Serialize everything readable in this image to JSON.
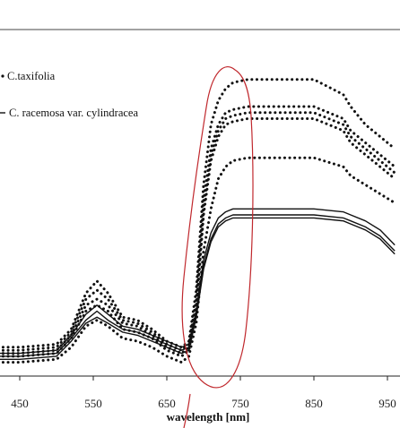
{
  "chart_data": {
    "type": "line",
    "title": "",
    "xlabel": "wavelength [nm]",
    "ylabel": "",
    "xlim": [
      400,
      960
    ],
    "ylim": [
      0,
      100
    ],
    "x_ticks": [
      450,
      550,
      650,
      750,
      850,
      950
    ],
    "x_tick_labels": [
      "450",
      "550",
      "650",
      "750",
      "850",
      "950"
    ],
    "legend": [
      {
        "label": "C.taxifolia",
        "style": "dotted"
      },
      {
        "label": "C. racemosa var. cylindracea",
        "style": "solid"
      }
    ],
    "legend_position": "top-left",
    "series": [
      {
        "style": "dotted",
        "x": [
          400,
          450,
          500,
          520,
          540,
          555,
          570,
          590,
          610,
          630,
          650,
          670,
          680,
          690,
          700,
          710,
          720,
          730,
          740,
          760,
          790,
          850,
          890,
          900,
          920,
          940,
          960
        ],
        "y": [
          6,
          6,
          7,
          12,
          24,
          28,
          24,
          16,
          15,
          12,
          8,
          6,
          8,
          25,
          60,
          80,
          88,
          92,
          94,
          95,
          95,
          95,
          90,
          86,
          80,
          76,
          72
        ]
      },
      {
        "style": "dotted",
        "x": [
          400,
          450,
          500,
          520,
          540,
          555,
          570,
          590,
          610,
          630,
          650,
          670,
          680,
          690,
          700,
          710,
          720,
          730,
          740,
          760,
          790,
          850,
          890,
          900,
          920,
          940,
          960
        ],
        "y": [
          5,
          5,
          6,
          11,
          22,
          25,
          22,
          15,
          14,
          11,
          7,
          5,
          7,
          22,
          55,
          72,
          80,
          84,
          85,
          86,
          86,
          86,
          82,
          78,
          74,
          70,
          66
        ]
      },
      {
        "style": "dotted",
        "x": [
          400,
          450,
          500,
          520,
          540,
          555,
          570,
          590,
          610,
          630,
          650,
          670,
          680,
          690,
          700,
          710,
          720,
          730,
          740,
          760,
          790,
          850,
          890,
          900,
          920,
          940,
          960
        ],
        "y": [
          4,
          4,
          5,
          10,
          20,
          22,
          20,
          14,
          13,
          10,
          6,
          4,
          6,
          20,
          52,
          70,
          78,
          82,
          83,
          84,
          84,
          84,
          80,
          76,
          72,
          68,
          64
        ]
      },
      {
        "style": "dotted",
        "x": [
          400,
          450,
          500,
          520,
          540,
          555,
          570,
          590,
          610,
          630,
          650,
          670,
          680,
          690,
          700,
          710,
          720,
          730,
          740,
          760,
          790,
          850,
          890,
          900,
          920,
          940,
          960
        ],
        "y": [
          3,
          3,
          4,
          9,
          18,
          20,
          18,
          12,
          11,
          9,
          5,
          3,
          5,
          18,
          50,
          68,
          76,
          80,
          81,
          82,
          82,
          82,
          78,
          74,
          70,
          66,
          62
        ]
      },
      {
        "style": "dotted",
        "x": [
          400,
          450,
          500,
          520,
          540,
          555,
          570,
          590,
          610,
          630,
          650,
          670,
          680,
          690,
          700,
          710,
          720,
          730,
          740,
          760,
          790,
          850,
          890,
          900,
          920,
          940,
          960
        ],
        "y": [
          1,
          1,
          2,
          6,
          13,
          15,
          13,
          9,
          8,
          6,
          3,
          1,
          3,
          14,
          38,
          52,
          62,
          66,
          68,
          69,
          69,
          69,
          66,
          63,
          60,
          57,
          54
        ]
      },
      {
        "style": "solid",
        "x": [
          400,
          450,
          500,
          520,
          540,
          555,
          570,
          590,
          610,
          630,
          650,
          670,
          680,
          690,
          700,
          710,
          720,
          730,
          740,
          760,
          790,
          850,
          890,
          900,
          920,
          940,
          960
        ],
        "y": [
          4,
          4,
          5,
          10,
          17,
          20,
          17,
          13,
          12,
          10,
          8,
          6,
          7,
          18,
          35,
          44,
          49,
          51,
          52,
          52,
          52,
          52,
          51,
          50,
          48,
          45,
          40
        ]
      },
      {
        "style": "solid",
        "x": [
          400,
          450,
          500,
          520,
          540,
          555,
          570,
          590,
          610,
          630,
          650,
          670,
          680,
          690,
          700,
          710,
          720,
          730,
          740,
          760,
          790,
          850,
          890,
          900,
          920,
          940,
          960
        ],
        "y": [
          3,
          3,
          4,
          9,
          15,
          18,
          15,
          12,
          11,
          9,
          7,
          5,
          6,
          17,
          33,
          42,
          47,
          49,
          50,
          50,
          50,
          50,
          49,
          48,
          46,
          43,
          38
        ]
      },
      {
        "style": "solid",
        "x": [
          400,
          450,
          500,
          520,
          540,
          555,
          570,
          590,
          610,
          630,
          650,
          670,
          680,
          690,
          700,
          710,
          720,
          730,
          740,
          760,
          790,
          850,
          890,
          900,
          920,
          940,
          960
        ],
        "y": [
          2,
          2,
          3,
          8,
          14,
          16,
          14,
          11,
          10,
          8,
          6,
          4,
          5,
          16,
          32,
          41,
          46,
          48,
          49,
          49,
          49,
          49,
          48,
          47,
          45,
          42,
          37
        ]
      }
    ]
  }
}
